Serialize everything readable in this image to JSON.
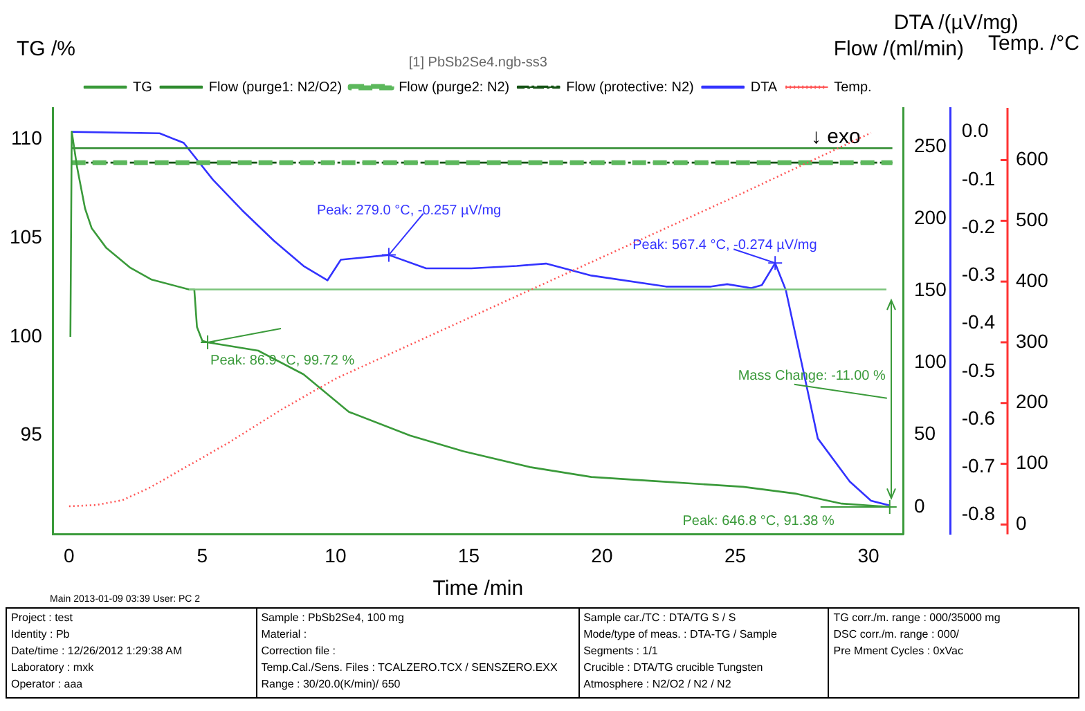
{
  "chart_data": [
    {
      "type": "line",
      "xlabel": "Time /min",
      "ylabel": "TG /%",
      "y2label": "Flow /(ml/min)",
      "y3label": "DTA /(µV/mg)",
      "legend_title": "[1] PbSb2Se4.ngb-ss3",
      "legend": "top",
      "grid": false,
      "xlim": [
        -0.6,
        31.3
      ],
      "xticks": [
        0,
        5,
        10,
        15,
        20,
        25,
        30
      ],
      "ylim": [
        90,
        111.6
      ],
      "yticks": [
        95,
        100,
        105,
        110
      ],
      "y2lim": [
        -19,
        277
      ],
      "y2ticks": [
        0,
        50,
        100,
        150,
        200,
        250
      ],
      "y3lim": [
        -0.84,
        0.05
      ],
      "y3ticks": [
        {
          "value": 0,
          "label": "0.0"
        },
        -0.1,
        -0.2,
        -0.3,
        -0.4,
        -0.5,
        -0.6,
        -0.7,
        -0.8
      ],
      "series": [
        {
          "name": "TG",
          "type": "line",
          "color": "#3a9a3a",
          "line_style": "solid",
          "x": [
            0.05,
            0.1,
            0.3,
            0.6,
            0.85,
            1.4,
            2.3,
            3.1,
            4.5,
            4.7,
            4.8,
            5.0,
            5.2,
            7.1,
            8.8,
            10.5,
            12.8,
            14.8,
            17.3,
            19.6,
            21.9,
            25.3,
            27.3,
            29.0,
            30.8
          ],
          "values": [
            100,
            110.4,
            108.6,
            106.5,
            105.5,
            104.5,
            103.5,
            102.9,
            102.4,
            102.4,
            100.5,
            99.8,
            99.72,
            99.3,
            98.1,
            96.2,
            95.0,
            94.2,
            93.4,
            92.9,
            92.7,
            92.4,
            92.05,
            91.55,
            91.38
          ]
        },
        {
          "name": "Flow (purge1: N2/O2)",
          "type": "line",
          "axis": "y2",
          "color": "#2e8b2e",
          "line_style": "solid",
          "x": [
            0.1,
            30.9
          ],
          "values": [
            249,
            249
          ]
        },
        {
          "name": "Flow (purge2: N2)",
          "type": "line",
          "axis": "y2",
          "color": "#5cb85c",
          "line_style": "dashed",
          "x": [
            0.1,
            30.9
          ],
          "values": [
            239,
            239
          ]
        },
        {
          "name": "Flow (protective: N2)",
          "type": "line",
          "axis": "y2",
          "color": "#145214",
          "line_style": "dashed",
          "x": [
            0.1,
            30.9
          ],
          "values": [
            239,
            239
          ]
        },
        {
          "name": "DTA",
          "type": "line",
          "axis": "y3",
          "color": "#3333ff",
          "line_style": "solid",
          "x": [
            0.1,
            3.4,
            4.3,
            5.4,
            6.5,
            7.7,
            8.8,
            9.7,
            10.2,
            12.0,
            13.4,
            15.1,
            16.8,
            17.9,
            19.6,
            22.4,
            24.1,
            24.7,
            25.6,
            26.0,
            26.5,
            26.9,
            27.6,
            28.1,
            29.3,
            30.1,
            30.8
          ],
          "values": [
            0.0,
            -0.003,
            -0.023,
            -0.1,
            -0.164,
            -0.228,
            -0.28,
            -0.31,
            -0.267,
            -0.257,
            -0.285,
            -0.285,
            -0.28,
            -0.275,
            -0.3,
            -0.323,
            -0.323,
            -0.318,
            -0.326,
            -0.32,
            -0.274,
            -0.33,
            -0.51,
            -0.64,
            -0.73,
            -0.77,
            -0.78
          ]
        }
      ],
      "ref_lines": [
        {
          "axis": "y",
          "value": 102.4,
          "label": null,
          "color": "#7cc47c"
        }
      ],
      "annotations": [
        {
          "text": "Peak: 86.9 °C, 99.72 %",
          "x": 5.2,
          "y": 99.72
        },
        {
          "text": "Peak: 646.8 °C, 91.38 %",
          "x": 30.8,
          "y": 91.38
        },
        "↓ exo",
        {
          "text": "Peak: 279.0 °C, -0.257 µV/mg",
          "x": 12.0,
          "y": 104.15
        },
        {
          "text": "Peak: 567.4 °C, -0.274 µV/mg",
          "x": 26.5,
          "y": 103.74
        },
        "Mass Change: -11.00 %",
        "Main   2013-01-09 03:39   User: PC 2",
        "Project : test",
        "Identity : Pb",
        "Date/time : 12/26/2012 1:29:38 AM",
        "Laboratory : mxk",
        "Operator : aaa",
        "Sample : PbSb2Se4, 100 mg",
        "Material :",
        "Correction file :",
        "Temp.Cal./Sens. Files : TCALZERO.TCX / SENSZERO.EXX",
        "Range : 30/20.0(K/min)/ 650",
        "Sample car./TC : DTA/TG S / S",
        "Mode/type of meas. : DTA-TG / Sample",
        "Segments : 1/1",
        "Crucible : DTA/TG crucible Tungsten",
        "Atmosphere : N2/O2 / N2 / N2",
        "TG corr./m. range : 000/35000 mg",
        "DSC corr./m. range : 000/",
        "Pre Mment Cycles : 0xVac"
      ]
    },
    {
      "type": "line",
      "ylabel": "Temp. /°C",
      "tick_labels": "y",
      "xlim": [
        -0.6,
        31.3
      ],
      "ylim": [
        -16,
        686
      ],
      "yticks": [
        0,
        100,
        200,
        300,
        400,
        500,
        600
      ],
      "series": [
        {
          "name": "Temp.",
          "type": "line",
          "color": "#ff5555",
          "line_style": "dotted",
          "x": [
            0,
            1,
            2,
            3,
            4,
            5,
            6,
            8,
            10,
            15,
            20,
            25,
            30.1
          ],
          "values": [
            30,
            32,
            40,
            60,
            85,
            110,
            135,
            190,
            240,
            340,
            440,
            540,
            645
          ]
        }
      ]
    }
  ]
}
